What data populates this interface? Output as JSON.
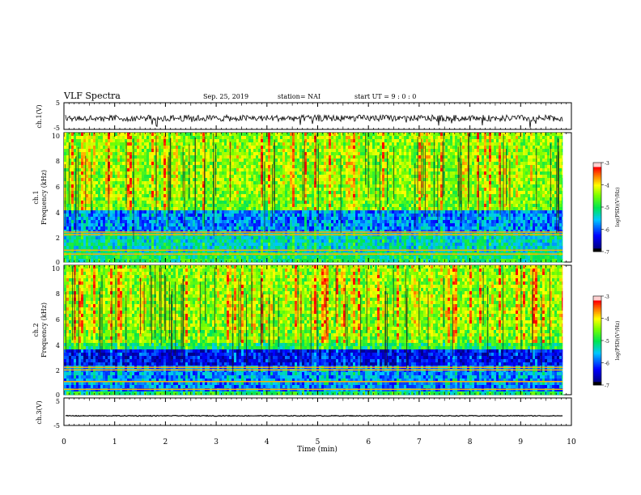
{
  "header": {
    "title": "VLF Spectra",
    "date": "Sep. 25, 2019",
    "station": "station= NAI",
    "start": "start  UT =   9 : 0  : 0"
  },
  "colorbar": {
    "label": "log(PSD)(V²/Hz)",
    "ticks": [
      "-3",
      "-4",
      "-5",
      "-6",
      "-7"
    ],
    "colors": [
      "#ffd2d2",
      "#ff0000",
      "#ffff00",
      "#00c800",
      "#00ffff",
      "#0000ff",
      "#000080",
      "#000000"
    ]
  },
  "chart_data": [
    {
      "type": "line",
      "name": "ch1-waveform",
      "ylabel": "ch.1(V)",
      "yticks": [
        "5",
        "-5"
      ],
      "ylim": [
        -5,
        5
      ],
      "xlim": [
        0,
        10
      ],
      "description_values": "noisy waveform centred slightly below 0 V, excursions to about -5 V",
      "approx_level": -0.8
    },
    {
      "type": "heatmap",
      "name": "ch1-spectrogram",
      "ylabel": "ch.1\nFrequency (kHz)",
      "yticks": [
        "10",
        "8",
        "6",
        "4",
        "2",
        "0"
      ],
      "ylim": [
        0,
        10
      ],
      "xlim": [
        0,
        9.83
      ],
      "bands": [
        {
          "from": 4.0,
          "to": 10.0,
          "level": "high"
        },
        {
          "from": 2.2,
          "to": 4.0,
          "level": "low"
        },
        {
          "from": 0.8,
          "to": 2.2,
          "level": "mid-low"
        },
        {
          "from": 0.0,
          "to": 0.8,
          "level": "mixed"
        }
      ],
      "lines_khz": [
        2.3,
        2.1,
        0.9,
        0.6
      ]
    },
    {
      "type": "heatmap",
      "name": "ch2-spectrogram",
      "ylabel": "ch.2\nFrequency (kHz)",
      "yticks": [
        "10",
        "8",
        "6",
        "4",
        "2",
        "0"
      ],
      "ylim": [
        0,
        10
      ],
      "xlim": [
        0,
        9.83
      ],
      "bands": [
        {
          "from": 4.0,
          "to": 10.0,
          "level": "high"
        },
        {
          "from": 2.2,
          "to": 3.6,
          "level": "very-low"
        },
        {
          "from": 0.3,
          "to": 2.2,
          "level": "low"
        },
        {
          "from": 0.0,
          "to": 0.3,
          "level": "mixed"
        }
      ],
      "lines_khz": [
        2.1,
        1.9,
        1.0,
        0.4
      ]
    },
    {
      "type": "line",
      "name": "ch3-waveform",
      "ylabel": "ch.3(V)",
      "yticks": [
        "5",
        "-5"
      ],
      "ylim": [
        -5,
        5
      ],
      "xlim": [
        0,
        10
      ],
      "approx_level": -1.5
    }
  ],
  "xaxis": {
    "label": "Time  (min)",
    "ticks": [
      "0",
      "1",
      "2",
      "3",
      "4",
      "5",
      "6",
      "7",
      "8",
      "9",
      "10"
    ]
  }
}
